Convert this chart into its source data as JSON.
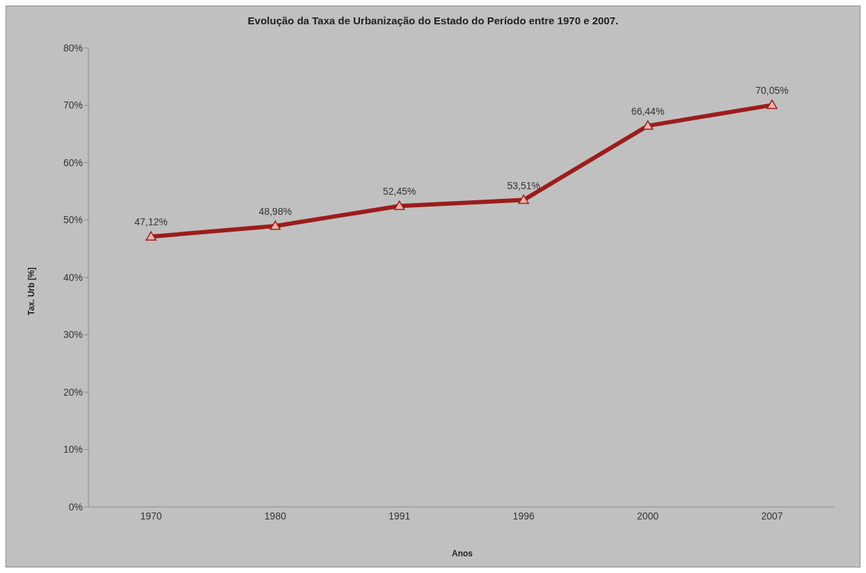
{
  "chart_data": {
    "type": "line",
    "title": "Evolução da Taxa de Urbanização do Estado do Período entre 1970 e 2007.",
    "xlabel": "Anos",
    "ylabel": "Tax. Urb [%]",
    "categories": [
      "1970",
      "1980",
      "1991",
      "1996",
      "2000",
      "2007"
    ],
    "series": [
      {
        "color": "#9c1c1c",
        "values": [
          47.12,
          48.98,
          52.45,
          53.51,
          66.44,
          70.05
        ],
        "value_labels": [
          "47,12%",
          "48,98%",
          "52,45%",
          "53,51%",
          "66,44%",
          "70,05%"
        ]
      }
    ],
    "ylim": [
      0,
      80
    ],
    "yticks": [
      {
        "value": 0,
        "label": "0%"
      },
      {
        "value": 10,
        "label": "10%"
      },
      {
        "value": 20,
        "label": "20%"
      },
      {
        "value": 30,
        "label": "30%"
      },
      {
        "value": 40,
        "label": "40%"
      },
      {
        "value": 50,
        "label": "50%"
      },
      {
        "value": 60,
        "label": "60%"
      },
      {
        "value": 70,
        "label": "70%"
      },
      {
        "value": 80,
        "label": "80%"
      }
    ],
    "grid": false,
    "marker": "triangle",
    "line_style": "solid",
    "legend": false
  }
}
